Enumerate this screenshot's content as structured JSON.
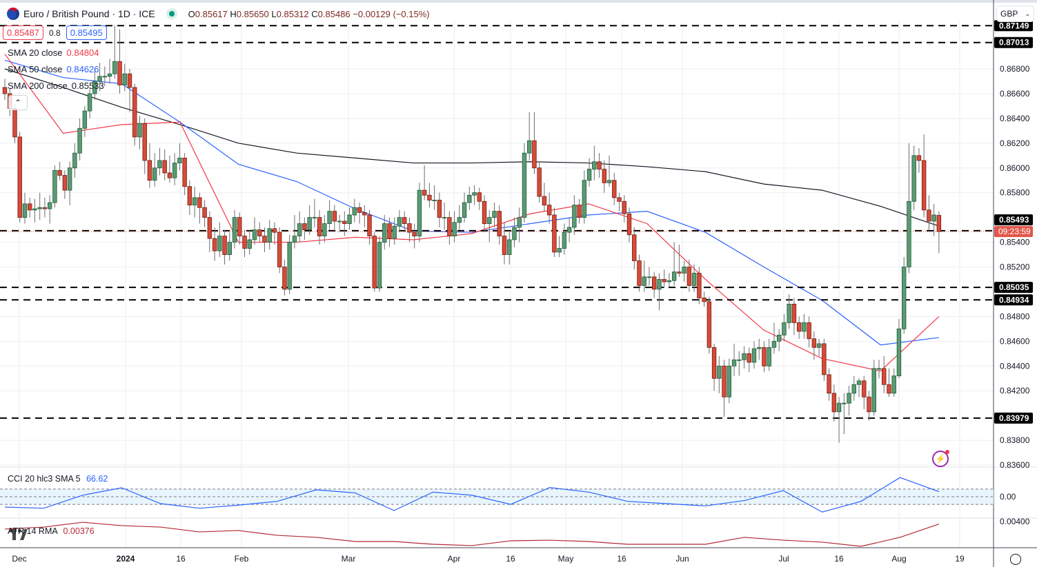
{
  "header": {
    "symbol": "Euro / British Pound · 1D · ICE",
    "open_label": "O",
    "open": "0.85617",
    "high_label": "H",
    "high": "0.85650",
    "low_label": "L",
    "low": "0.85312",
    "close_label": "C",
    "close": "0.85486",
    "change": "−0.00129 (−0.15%)",
    "status_color": "#089981"
  },
  "quote": {
    "sell": "0.85487",
    "spread": "0.8",
    "buy": "0.85495"
  },
  "legend": [
    {
      "label": "SMA 20 close",
      "value": "0.84804",
      "color": "#f23645"
    },
    {
      "label": "SMA 50 close",
      "value": "0.84626",
      "color": "#2962ff"
    },
    {
      "label": "SMA 200 close",
      "value": "0.85533",
      "color": "#131722"
    }
  ],
  "currency_select": {
    "value": "GBP"
  },
  "price_axis": {
    "ticks": [
      "0.86800",
      "0.86600",
      "0.86400",
      "0.86200",
      "0.86000",
      "0.85800",
      "0.85400",
      "0.85200",
      "0.84800",
      "0.84600",
      "0.84400",
      "0.84200",
      "0.83800",
      "0.83600"
    ],
    "levels": [
      "0.87149",
      "0.87013",
      "0.85493",
      "0.85035",
      "0.84934",
      "0.83979"
    ],
    "countdown": "09:23:59",
    "last_price": 0.85486
  },
  "time_axis": {
    "labels": [
      "Dec",
      "2024",
      "16",
      "Feb",
      "Mar",
      "Apr",
      "16",
      "May",
      "16",
      "Jun",
      "Jul",
      "16",
      "Aug",
      "19"
    ]
  },
  "indicators": {
    "cci": {
      "label": "CCI 20 hlc3 SMA 5",
      "value": "66.62",
      "zero_tick": "0.00",
      "band": [
        -100,
        100
      ]
    },
    "atr": {
      "label": "ATR 14 RMA",
      "value": "0.00376",
      "tick": "0.00400"
    }
  },
  "colors": {
    "up": "#5b9a74",
    "down": "#d94a38",
    "sma20": "#f23645",
    "sma50": "#2962ff",
    "sma200": "#131722",
    "cci": "#2962ff",
    "atr": "#b22833",
    "countdown_bg": "#e0574a"
  },
  "chart_data": {
    "type": "candlestick",
    "title": "Euro / British Pound · 1D · ICE",
    "ylim": [
      0.836,
      0.8718
    ],
    "grid": true,
    "ohlc": [
      [
        0.8665,
        0.8672,
        0.8655,
        0.866
      ],
      [
        0.866,
        0.8664,
        0.8642,
        0.8648
      ],
      [
        0.8648,
        0.8652,
        0.862,
        0.8625
      ],
      [
        0.8625,
        0.8629,
        0.8556,
        0.856
      ],
      [
        0.856,
        0.858,
        0.8555,
        0.8571
      ],
      [
        0.8571,
        0.8576,
        0.856,
        0.8566
      ],
      [
        0.8566,
        0.8575,
        0.8556,
        0.8567
      ],
      [
        0.8567,
        0.858,
        0.8558,
        0.8568
      ],
      [
        0.8568,
        0.8576,
        0.856,
        0.8567
      ],
      [
        0.8567,
        0.8578,
        0.8555,
        0.8572
      ],
      [
        0.8572,
        0.8602,
        0.8568,
        0.8598
      ],
      [
        0.8598,
        0.8605,
        0.859,
        0.8594
      ],
      [
        0.8594,
        0.8598,
        0.8575,
        0.8582
      ],
      [
        0.8582,
        0.8605,
        0.857,
        0.86
      ],
      [
        0.86,
        0.862,
        0.8592,
        0.8612
      ],
      [
        0.8612,
        0.864,
        0.8606,
        0.8632
      ],
      [
        0.8632,
        0.865,
        0.8625,
        0.8646
      ],
      [
        0.8646,
        0.8664,
        0.864,
        0.866
      ],
      [
        0.866,
        0.868,
        0.8655,
        0.867
      ],
      [
        0.867,
        0.8685,
        0.8662,
        0.8674
      ],
      [
        0.8674,
        0.8682,
        0.8666,
        0.8674
      ],
      [
        0.8674,
        0.8688,
        0.8668,
        0.8676
      ],
      [
        0.8676,
        0.8715,
        0.8672,
        0.8686
      ],
      [
        0.8686,
        0.8712,
        0.866,
        0.8667
      ],
      [
        0.8667,
        0.8684,
        0.8662,
        0.8676
      ],
      [
        0.8676,
        0.868,
        0.8645,
        0.8665
      ],
      [
        0.8665,
        0.8668,
        0.8618,
        0.8625
      ],
      [
        0.8625,
        0.8642,
        0.8615,
        0.8636
      ],
      [
        0.8636,
        0.864,
        0.8595,
        0.8606
      ],
      [
        0.8606,
        0.862,
        0.8584,
        0.859
      ],
      [
        0.859,
        0.8612,
        0.8585,
        0.86
      ],
      [
        0.86,
        0.8616,
        0.8594,
        0.8606
      ],
      [
        0.8606,
        0.8615,
        0.859,
        0.8596
      ],
      [
        0.8596,
        0.861,
        0.8588,
        0.8592
      ],
      [
        0.8592,
        0.8612,
        0.8586,
        0.8604
      ],
      [
        0.8604,
        0.862,
        0.8598,
        0.8608
      ],
      [
        0.8608,
        0.8612,
        0.8578,
        0.8585
      ],
      [
        0.8585,
        0.859,
        0.8562,
        0.857
      ],
      [
        0.857,
        0.8585,
        0.856,
        0.8576
      ],
      [
        0.8576,
        0.858,
        0.8555,
        0.8568
      ],
      [
        0.8568,
        0.8574,
        0.8552,
        0.856
      ],
      [
        0.856,
        0.8565,
        0.8532,
        0.8543
      ],
      [
        0.8543,
        0.8552,
        0.8525,
        0.8533
      ],
      [
        0.8533,
        0.8556,
        0.8528,
        0.8545
      ],
      [
        0.8545,
        0.855,
        0.8522,
        0.853
      ],
      [
        0.853,
        0.8548,
        0.8525,
        0.854
      ],
      [
        0.854,
        0.8566,
        0.8535,
        0.856
      ],
      [
        0.856,
        0.8564,
        0.8538,
        0.8545
      ],
      [
        0.8545,
        0.855,
        0.8528,
        0.8535
      ],
      [
        0.8535,
        0.855,
        0.853,
        0.8542
      ],
      [
        0.8542,
        0.856,
        0.8538,
        0.855
      ],
      [
        0.855,
        0.8556,
        0.854,
        0.8545
      ],
      [
        0.8545,
        0.8552,
        0.8532,
        0.854
      ],
      [
        0.854,
        0.8558,
        0.8534,
        0.8551
      ],
      [
        0.8551,
        0.8556,
        0.8538,
        0.8548
      ],
      [
        0.8548,
        0.8552,
        0.8515,
        0.852
      ],
      [
        0.852,
        0.8526,
        0.8497,
        0.8502
      ],
      [
        0.8502,
        0.8546,
        0.8498,
        0.854
      ],
      [
        0.854,
        0.8562,
        0.8535,
        0.8545
      ],
      [
        0.8545,
        0.8565,
        0.854,
        0.8555
      ],
      [
        0.8555,
        0.856,
        0.8542,
        0.855
      ],
      [
        0.855,
        0.857,
        0.8546,
        0.856
      ],
      [
        0.856,
        0.8575,
        0.8552,
        0.856
      ],
      [
        0.856,
        0.8566,
        0.8538,
        0.8545
      ],
      [
        0.8545,
        0.8562,
        0.854,
        0.8555
      ],
      [
        0.8555,
        0.8574,
        0.855,
        0.8565
      ],
      [
        0.8565,
        0.857,
        0.855,
        0.8557
      ],
      [
        0.8557,
        0.8562,
        0.8548,
        0.8557
      ],
      [
        0.8557,
        0.8565,
        0.8545,
        0.8555
      ],
      [
        0.8555,
        0.8568,
        0.855,
        0.8562
      ],
      [
        0.8562,
        0.8575,
        0.8556,
        0.8568
      ],
      [
        0.8568,
        0.8572,
        0.8555,
        0.8564
      ],
      [
        0.8564,
        0.857,
        0.8552,
        0.8562
      ],
      [
        0.8562,
        0.8566,
        0.8538,
        0.8545
      ],
      [
        0.8545,
        0.8548,
        0.85,
        0.8503
      ],
      [
        0.8503,
        0.8545,
        0.85,
        0.854
      ],
      [
        0.854,
        0.8562,
        0.8534,
        0.8555
      ],
      [
        0.8555,
        0.856,
        0.8536,
        0.8543
      ],
      [
        0.8543,
        0.856,
        0.8538,
        0.8553
      ],
      [
        0.8553,
        0.8566,
        0.8548,
        0.856
      ],
      [
        0.856,
        0.8565,
        0.8548,
        0.8555
      ],
      [
        0.8555,
        0.856,
        0.854,
        0.8548
      ],
      [
        0.8548,
        0.8555,
        0.8535,
        0.8545
      ],
      [
        0.8545,
        0.8588,
        0.854,
        0.8582
      ],
      [
        0.8582,
        0.8602,
        0.8574,
        0.8578
      ],
      [
        0.8578,
        0.8588,
        0.8568,
        0.8574
      ],
      [
        0.8574,
        0.8586,
        0.8566,
        0.8574
      ],
      [
        0.8574,
        0.858,
        0.8552,
        0.856
      ],
      [
        0.856,
        0.8572,
        0.855,
        0.856
      ],
      [
        0.856,
        0.8565,
        0.8538,
        0.8545
      ],
      [
        0.8545,
        0.8565,
        0.854,
        0.8556
      ],
      [
        0.8556,
        0.857,
        0.855,
        0.856
      ],
      [
        0.856,
        0.858,
        0.8556,
        0.8572
      ],
      [
        0.8572,
        0.8585,
        0.8566,
        0.8578
      ],
      [
        0.8578,
        0.8586,
        0.857,
        0.858
      ],
      [
        0.858,
        0.8584,
        0.8566,
        0.8573
      ],
      [
        0.8573,
        0.8578,
        0.8548,
        0.8555
      ],
      [
        0.8555,
        0.8566,
        0.854,
        0.856
      ],
      [
        0.856,
        0.8572,
        0.8552,
        0.8565
      ],
      [
        0.8565,
        0.857,
        0.8538,
        0.8545
      ],
      [
        0.8545,
        0.8556,
        0.8522,
        0.853
      ],
      [
        0.853,
        0.8548,
        0.8522,
        0.8542
      ],
      [
        0.8542,
        0.856,
        0.8536,
        0.8552
      ],
      [
        0.8552,
        0.8568,
        0.854,
        0.856
      ],
      [
        0.856,
        0.862,
        0.8556,
        0.8612
      ],
      [
        0.8612,
        0.8645,
        0.8606,
        0.8622
      ],
      [
        0.8622,
        0.8645,
        0.8595,
        0.86
      ],
      [
        0.86,
        0.8605,
        0.8572,
        0.8577
      ],
      [
        0.8577,
        0.8588,
        0.8565,
        0.857
      ],
      [
        0.857,
        0.858,
        0.8555,
        0.8562
      ],
      [
        0.8562,
        0.8568,
        0.8528,
        0.8532
      ],
      [
        0.8532,
        0.8545,
        0.8528,
        0.8535
      ],
      [
        0.8535,
        0.8555,
        0.853,
        0.8548
      ],
      [
        0.8548,
        0.856,
        0.854,
        0.8552
      ],
      [
        0.8552,
        0.8578,
        0.8546,
        0.857
      ],
      [
        0.857,
        0.8575,
        0.8555,
        0.856
      ],
      [
        0.856,
        0.8598,
        0.8555,
        0.859
      ],
      [
        0.859,
        0.8608,
        0.8585,
        0.8599
      ],
      [
        0.8599,
        0.8618,
        0.859,
        0.8605
      ],
      [
        0.8605,
        0.8612,
        0.8592,
        0.8599
      ],
      [
        0.8599,
        0.8606,
        0.858,
        0.8588
      ],
      [
        0.8588,
        0.861,
        0.8585,
        0.859
      ],
      [
        0.859,
        0.8596,
        0.857,
        0.8576
      ],
      [
        0.8576,
        0.858,
        0.8565,
        0.8573
      ],
      [
        0.8573,
        0.8578,
        0.8556,
        0.8563
      ],
      [
        0.8563,
        0.8568,
        0.854,
        0.8546
      ],
      [
        0.8546,
        0.8552,
        0.8518,
        0.8525
      ],
      [
        0.8525,
        0.853,
        0.85,
        0.8505
      ],
      [
        0.8505,
        0.8525,
        0.85,
        0.8512
      ],
      [
        0.8512,
        0.852,
        0.8505,
        0.8512
      ],
      [
        0.8512,
        0.8516,
        0.8495,
        0.8502
      ],
      [
        0.8502,
        0.8515,
        0.8485,
        0.851
      ],
      [
        0.851,
        0.8518,
        0.8503,
        0.8508
      ],
      [
        0.8508,
        0.8515,
        0.8504,
        0.8509
      ],
      [
        0.8509,
        0.854,
        0.8505,
        0.8516
      ],
      [
        0.8516,
        0.8538,
        0.8512,
        0.8515
      ],
      [
        0.8515,
        0.8525,
        0.8508,
        0.852
      ],
      [
        0.852,
        0.8526,
        0.85,
        0.8505
      ],
      [
        0.8505,
        0.8522,
        0.85,
        0.8515
      ],
      [
        0.8515,
        0.852,
        0.849,
        0.8495
      ],
      [
        0.8495,
        0.85,
        0.8488,
        0.8492
      ],
      [
        0.8492,
        0.8496,
        0.845,
        0.8455
      ],
      [
        0.8455,
        0.8458,
        0.842,
        0.843
      ],
      [
        0.843,
        0.8448,
        0.8418,
        0.844
      ],
      [
        0.844,
        0.8445,
        0.8399,
        0.8415
      ],
      [
        0.8415,
        0.8446,
        0.841,
        0.844
      ],
      [
        0.844,
        0.8458,
        0.8432,
        0.8445
      ],
      [
        0.8445,
        0.8452,
        0.8432,
        0.8445
      ],
      [
        0.8445,
        0.8456,
        0.8438,
        0.845
      ],
      [
        0.845,
        0.8455,
        0.8435,
        0.8443
      ],
      [
        0.8443,
        0.846,
        0.8438,
        0.8454
      ],
      [
        0.8454,
        0.8462,
        0.8445,
        0.8455
      ],
      [
        0.8455,
        0.846,
        0.8435,
        0.844
      ],
      [
        0.844,
        0.8462,
        0.8436,
        0.8455
      ],
      [
        0.8455,
        0.8475,
        0.845,
        0.846
      ],
      [
        0.846,
        0.847,
        0.8452,
        0.8465
      ],
      [
        0.8465,
        0.8482,
        0.846,
        0.8475
      ],
      [
        0.8475,
        0.8498,
        0.847,
        0.849
      ],
      [
        0.849,
        0.8495,
        0.8465,
        0.8475
      ],
      [
        0.8475,
        0.848,
        0.8462,
        0.8468
      ],
      [
        0.8468,
        0.8482,
        0.8462,
        0.8475
      ],
      [
        0.8475,
        0.848,
        0.8455,
        0.8462
      ],
      [
        0.8462,
        0.8468,
        0.8445,
        0.8455
      ],
      [
        0.8455,
        0.8462,
        0.8448,
        0.8458
      ],
      [
        0.8458,
        0.8462,
        0.8428,
        0.8433
      ],
      [
        0.8433,
        0.8438,
        0.8412,
        0.8418
      ],
      [
        0.8418,
        0.8425,
        0.8395,
        0.8403
      ],
      [
        0.8403,
        0.8415,
        0.8378,
        0.841
      ],
      [
        0.841,
        0.8418,
        0.8385,
        0.841
      ],
      [
        0.841,
        0.8424,
        0.84,
        0.8418
      ],
      [
        0.8418,
        0.8432,
        0.8412,
        0.8425
      ],
      [
        0.8425,
        0.843,
        0.8415,
        0.8428
      ],
      [
        0.8428,
        0.8432,
        0.8405,
        0.8415
      ],
      [
        0.8415,
        0.842,
        0.8396,
        0.8403
      ],
      [
        0.8403,
        0.8445,
        0.84,
        0.8438
      ],
      [
        0.8438,
        0.8445,
        0.843,
        0.8438
      ],
      [
        0.8438,
        0.8448,
        0.8418,
        0.8425
      ],
      [
        0.8425,
        0.8438,
        0.8415,
        0.8418
      ],
      [
        0.8418,
        0.8438,
        0.8415,
        0.8432
      ],
      [
        0.8432,
        0.8478,
        0.843,
        0.847
      ],
      [
        0.847,
        0.8528,
        0.8466,
        0.852
      ],
      [
        0.852,
        0.862,
        0.8515,
        0.8573
      ],
      [
        0.8573,
        0.8618,
        0.8566,
        0.861
      ],
      [
        0.861,
        0.8616,
        0.8596,
        0.8606
      ],
      [
        0.8606,
        0.8627,
        0.856,
        0.8566
      ],
      [
        0.8566,
        0.8578,
        0.855,
        0.8557
      ],
      [
        0.8557,
        0.8571,
        0.8545,
        0.8562
      ],
      [
        0.85617,
        0.8565,
        0.85312,
        0.85486
      ]
    ],
    "sma200": [
      0.868,
      0.8665,
      0.8649,
      0.8635,
      0.862,
      0.8612,
      0.8608,
      0.8604,
      0.8604,
      0.8605,
      0.8604,
      0.8601,
      0.8597,
      0.8587,
      0.8582,
      0.8569,
      0.8553
    ],
    "sma50": [
      0.8687,
      0.8673,
      0.8668,
      0.8637,
      0.8603,
      0.8589,
      0.8567,
      0.8549,
      0.8548,
      0.8555,
      0.8562,
      0.8565,
      0.8548,
      0.852,
      0.8493,
      0.8457,
      0.8463
    ],
    "sma20": [
      0.8692,
      0.8628,
      0.8635,
      0.8637,
      0.854,
      0.854,
      0.8544,
      0.8542,
      0.8547,
      0.8563,
      0.8571,
      0.8555,
      0.851,
      0.8469,
      0.8446,
      0.8436,
      0.848
    ],
    "cci": [
      -135,
      -150,
      20,
      117,
      -90,
      -150,
      -110,
      -60,
      90,
      50,
      -180,
      60,
      20,
      -100,
      120,
      60,
      -60,
      -90,
      -120,
      -50,
      80,
      -200,
      -60,
      250,
      67
    ],
    "atr": [
      0.00328,
      0.00347,
      0.00393,
      0.00361,
      0.00347,
      0.00301,
      0.00314,
      0.00268,
      0.00249,
      0.00209,
      0.00209,
      0.00183,
      0.0017,
      0.00216,
      0.00222,
      0.00209,
      0.00183,
      0.00183,
      0.00183,
      0.00249,
      0.00222,
      0.00203,
      0.00163,
      0.00249,
      0.00376
    ]
  }
}
